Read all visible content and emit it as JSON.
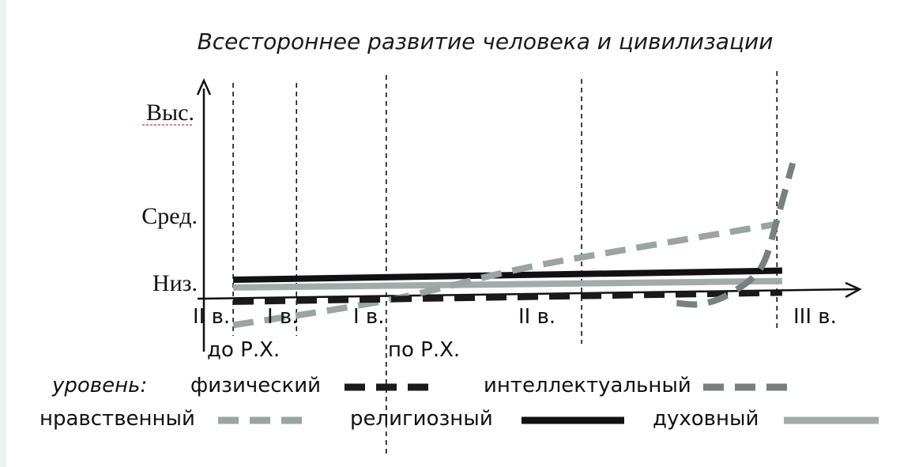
{
  "chart_data": {
    "type": "line",
    "title": "Всестороннее развитие человека и цивилизации",
    "y_levels": [
      "Низ.",
      "Сред.",
      "Выс."
    ],
    "x_ticks": [
      "II в.",
      "I в.",
      "I в.",
      "II в.",
      "III в."
    ],
    "eras": [
      "до Р.Х.",
      "по Р.Х."
    ],
    "legend_prefix": "уровень:",
    "legend_placement": "bottom",
    "x_domain": [
      -2.5,
      3.3
    ],
    "y_domain": [
      -0.15,
      1.65
    ],
    "vlines_x": [
      -2.2,
      -1.6,
      -0.75,
      1.1,
      2.95
    ],
    "series": [
      {
        "name": "физический",
        "color": "#1a1a1a",
        "style": "dash",
        "points": [
          [
            -2.2,
            -0.07
          ],
          [
            3.0,
            0.0
          ]
        ]
      },
      {
        "name": "интеллектуальный",
        "color": "#7a7f80",
        "style": "dash",
        "points": [
          [
            2.0,
            -0.08
          ],
          [
            2.2,
            -0.09
          ],
          [
            2.4,
            -0.05
          ],
          [
            2.6,
            0.04
          ],
          [
            2.75,
            0.14
          ],
          [
            2.85,
            0.28
          ],
          [
            2.95,
            0.56
          ],
          [
            3.1,
            1.0
          ]
        ]
      },
      {
        "name": "нравственный",
        "color": "#9ba3a3",
        "style": "dash",
        "points": [
          [
            -2.2,
            -0.25
          ],
          [
            -0.75,
            -0.06
          ],
          [
            0.5,
            0.18
          ],
          [
            1.5,
            0.33
          ],
          [
            2.95,
            0.53
          ]
        ]
      },
      {
        "name": "религиозный",
        "color": "#111111",
        "style": "solid",
        "points": [
          [
            -2.2,
            0.1
          ],
          [
            3.0,
            0.17
          ]
        ]
      },
      {
        "name": "духовный",
        "color": "#a3aaa9",
        "style": "solid",
        "points": [
          [
            -2.2,
            0.04
          ],
          [
            3.0,
            0.09
          ]
        ]
      }
    ]
  }
}
